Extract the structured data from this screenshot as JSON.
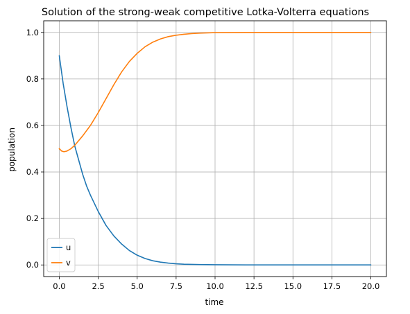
{
  "chart_data": {
    "type": "line",
    "title": "Solution of the strong-weak competitive Lotka-Volterra equations",
    "xlabel": "time",
    "ylabel": "population",
    "xlim": [
      -1.0,
      21.0
    ],
    "ylim": [
      -0.05,
      1.05
    ],
    "xticks": [
      0.0,
      2.5,
      5.0,
      7.5,
      10.0,
      12.5,
      15.0,
      17.5,
      20.0
    ],
    "xtick_labels": [
      "0.0",
      "2.5",
      "5.0",
      "7.5",
      "10.0",
      "12.5",
      "15.0",
      "17.5",
      "20.0"
    ],
    "yticks": [
      0.0,
      0.2,
      0.4,
      0.6,
      0.8,
      1.0
    ],
    "ytick_labels": [
      "0.0",
      "0.2",
      "0.4",
      "0.6",
      "0.8",
      "1.0"
    ],
    "grid": true,
    "legend_position": "lower-left",
    "series": [
      {
        "name": "u",
        "color": "#1f77b4",
        "x": [
          0,
          0.25,
          0.5,
          0.75,
          1.0,
          1.25,
          1.5,
          1.75,
          2.0,
          2.5,
          3.0,
          3.5,
          4.0,
          4.5,
          5.0,
          5.5,
          6.0,
          6.5,
          7.0,
          7.5,
          8.0,
          9.0,
          10.0,
          11.0,
          12.0,
          14.0,
          16.0,
          18.0,
          20.0
        ],
        "y": [
          0.9,
          0.78,
          0.68,
          0.59,
          0.51,
          0.45,
          0.39,
          0.34,
          0.3,
          0.23,
          0.17,
          0.125,
          0.09,
          0.062,
          0.042,
          0.028,
          0.018,
          0.012,
          0.008,
          0.005,
          0.003,
          0.0015,
          0.0008,
          0.0004,
          0.0002,
          0.0001,
          0.0,
          0.0,
          0.0
        ]
      },
      {
        "name": "v",
        "color": "#ff7f0e",
        "x": [
          0,
          0.15,
          0.3,
          0.5,
          0.75,
          1.0,
          1.25,
          1.5,
          2.0,
          2.5,
          3.0,
          3.5,
          4.0,
          4.5,
          5.0,
          5.5,
          6.0,
          6.5,
          7.0,
          7.5,
          8.0,
          8.5,
          9.0,
          9.5,
          10.0,
          11.0,
          12.0,
          13.0,
          14.0,
          16.0,
          18.0,
          20.0
        ],
        "y": [
          0.5,
          0.49,
          0.487,
          0.49,
          0.5,
          0.515,
          0.535,
          0.555,
          0.6,
          0.655,
          0.715,
          0.775,
          0.83,
          0.875,
          0.91,
          0.938,
          0.958,
          0.972,
          0.982,
          0.988,
          0.992,
          0.995,
          0.997,
          0.998,
          0.999,
          0.9995,
          1.0,
          1.0,
          1.0,
          1.0,
          1.0,
          1.0
        ]
      }
    ]
  }
}
